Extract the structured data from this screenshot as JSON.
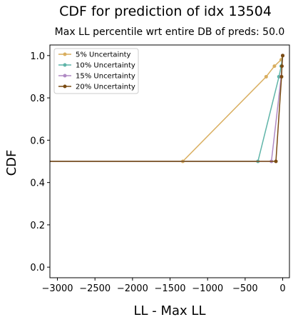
{
  "chart_data": {
    "type": "line",
    "title": "CDF for prediction of idx 13504",
    "subtitle": "Max LL percentile wrt entire DB of preds: 50.0",
    "xlabel": "LL - Max LL",
    "ylabel": "CDF",
    "xlim": [
      -3100,
      90
    ],
    "ylim": [
      -0.05,
      1.05
    ],
    "xticks": [
      -3000,
      -2500,
      -2000,
      -1500,
      -1000,
      -500,
      0
    ],
    "xtick_labels": [
      "−3000",
      "−2500",
      "−2000",
      "−1500",
      "−1000",
      "−500",
      "0"
    ],
    "yticks": [
      0.0,
      0.2,
      0.4,
      0.6,
      0.8,
      1.0
    ],
    "ytick_labels": [
      "0.0",
      "0.2",
      "0.4",
      "0.6",
      "0.8",
      "1.0"
    ],
    "legend_position": "upper-left",
    "series": [
      {
        "name": "5% Uncertainty",
        "color": "#d9ae5f",
        "x": [
          -3500,
          -1330,
          -220,
          -110,
          -20,
          0
        ],
        "y": [
          0.5,
          0.5,
          0.9,
          0.95,
          0.98,
          1.0
        ]
      },
      {
        "name": "10% Uncertainty",
        "color": "#5fb4a8",
        "x": [
          -3500,
          -330,
          -50,
          -20,
          0
        ],
        "y": [
          0.5,
          0.5,
          0.9,
          0.95,
          1.0
        ]
      },
      {
        "name": "15% Uncertainty",
        "color": "#b08ac4",
        "x": [
          -3500,
          -150,
          -20,
          0
        ],
        "y": [
          0.5,
          0.5,
          0.9,
          1.0
        ]
      },
      {
        "name": "20% Uncertainty",
        "color": "#7a4b12",
        "x": [
          -3500,
          -90,
          -15,
          -10,
          0
        ],
        "y": [
          0.5,
          0.5,
          0.9,
          0.95,
          1.0
        ]
      }
    ]
  }
}
